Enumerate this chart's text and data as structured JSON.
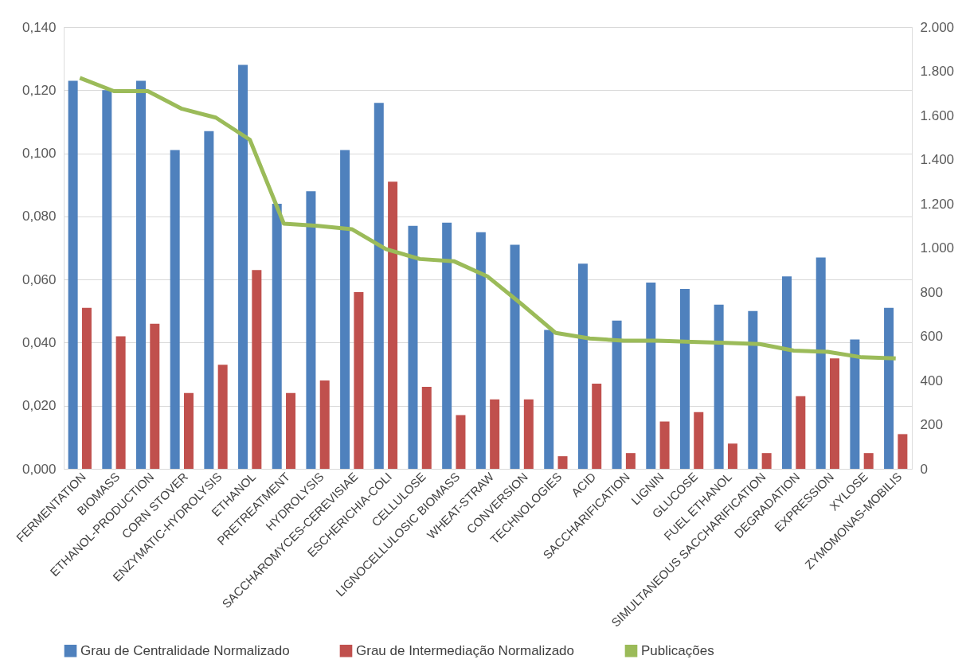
{
  "chart_data": {
    "type": "bar",
    "categories": [
      "FERMENTATION",
      "BIOMASS",
      "ETHANOL-PRODUCTION",
      "CORN STOVER",
      "ENZYMATIC-HYDROLYSIS",
      "ETHANOL",
      "PRETREATMENT",
      "HYDROLYSIS",
      "SACCHAROMYCES-CEREVISIAE",
      "ESCHERICHIA-COLI",
      "CELLULOSE",
      "LIGNOCELLULOSIC BIOMASS",
      "WHEAT-STRAW",
      "CONVERSION",
      "TECHNOLOGIES",
      "ACID",
      "SACCHARIFICATION",
      "LIGNIN",
      "GLUCOSE",
      "FUEL ETHANOL",
      "SIMULTANEOUS SACCHARIFICATION",
      "DEGRADATION",
      "EXPRESSION",
      "XYLOSE",
      "ZYMOMONAS-MOBILIS"
    ],
    "series": [
      {
        "name": "Grau de Centralidade Normalizado",
        "color": "#4f81bd",
        "values": [
          0.123,
          0.12,
          0.123,
          0.101,
          0.107,
          0.128,
          0.084,
          0.088,
          0.101,
          0.116,
          0.077,
          0.078,
          0.075,
          0.071,
          0.044,
          0.065,
          0.047,
          0.059,
          0.057,
          0.052,
          0.05,
          0.061,
          0.067,
          0.041,
          0.051
        ]
      },
      {
        "name": "Grau de Intermediação Normalizado",
        "color": "#c0504d",
        "values": [
          0.051,
          0.042,
          0.046,
          0.024,
          0.033,
          0.063,
          0.024,
          0.028,
          0.056,
          0.091,
          0.026,
          0.017,
          0.022,
          0.022,
          0.004,
          0.027,
          0.005,
          0.015,
          0.018,
          0.008,
          0.005,
          0.023,
          0.035,
          0.005,
          0.011
        ]
      },
      {
        "name": "Publicações",
        "color": "#9bbb59",
        "type": "line",
        "axis": "y2",
        "values": [
          1770,
          1710,
          1710,
          1630,
          1590,
          1490,
          1110,
          1100,
          1085,
          995,
          950,
          940,
          870,
          745,
          615,
          590,
          580,
          580,
          575,
          570,
          565,
          535,
          530,
          505,
          500
        ]
      }
    ],
    "ylim": [
      0,
      0.14
    ],
    "yticks": [
      {
        "value": 0,
        "label": "0,000"
      },
      {
        "value": 0.02,
        "label": "0,020"
      },
      {
        "value": 0.04,
        "label": "0,040"
      },
      {
        "value": 0.06,
        "label": "0,060"
      },
      {
        "value": 0.08,
        "label": "0,080"
      },
      {
        "value": 0.1,
        "label": "0,100"
      },
      {
        "value": 0.12,
        "label": "0,120"
      },
      {
        "value": 0.14,
        "label": "0,140"
      }
    ],
    "y2lim": [
      0,
      2000
    ],
    "y2ticks": [
      0,
      200,
      400,
      600,
      800,
      {
        "value": 1000,
        "label": "1.000"
      },
      {
        "value": 1200,
        "label": "1.200"
      },
      {
        "value": 1400,
        "label": "1.400"
      },
      {
        "value": 1600,
        "label": "1.600"
      },
      {
        "value": 1800,
        "label": "1.800"
      },
      {
        "value": 2000,
        "label": "2.000"
      }
    ],
    "grid": "y",
    "legend": "bottom",
    "marker": "none",
    "line_style": "solid"
  }
}
